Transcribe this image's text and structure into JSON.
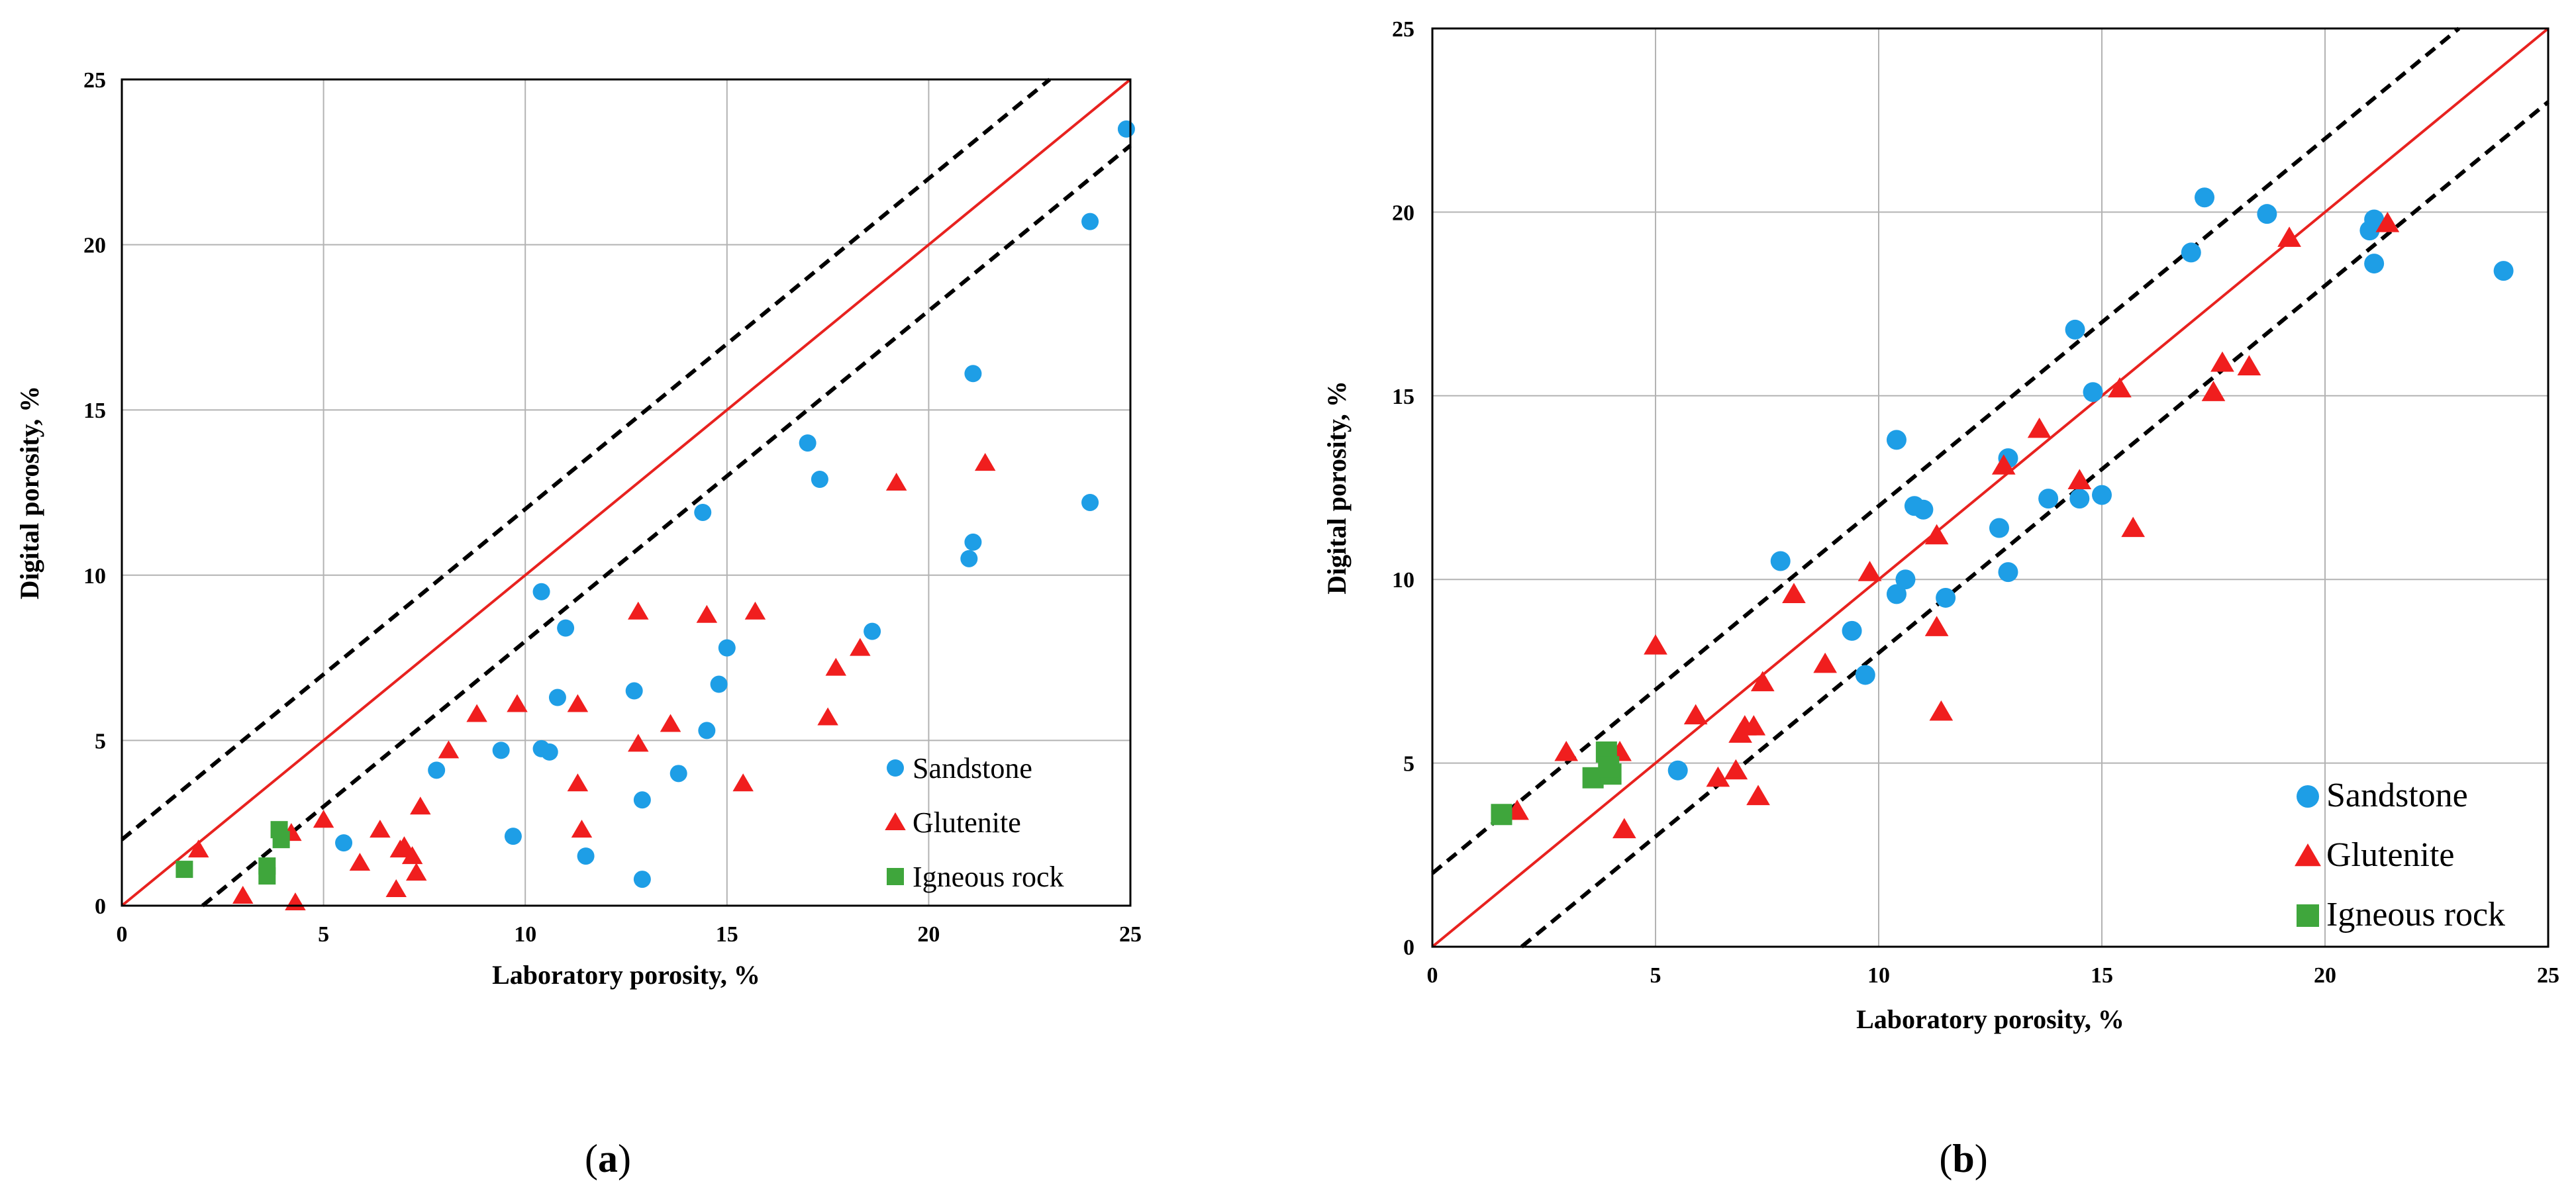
{
  "chart_data": [
    {
      "type": "scatter",
      "panel_label_prefix": "(",
      "panel_letter": "a",
      "panel_label_suffix": ")",
      "xlabel": "Laboratory porosity, %",
      "ylabel": "Digital porosity, %",
      "xlim": [
        0,
        25
      ],
      "ylim": [
        0,
        25
      ],
      "xticks": [
        "0",
        "5",
        "10",
        "15",
        "20",
        "25"
      ],
      "yticks": [
        "0",
        "5",
        "10",
        "15",
        "20",
        "25"
      ],
      "grid": true,
      "legend_position": "bottom-right",
      "reference_lines": {
        "identity": {
          "x": [
            0,
            25
          ],
          "y": [
            0,
            25
          ],
          "color": "#e8221f",
          "style": "solid"
        },
        "upper_bound": {
          "x": [
            0,
            23
          ],
          "y": [
            2,
            25
          ],
          "color": "#000000",
          "style": "dashed"
        },
        "lower_bound": {
          "x": [
            2,
            25
          ],
          "y": [
            0,
            23
          ],
          "color": "#000000",
          "style": "dashed"
        }
      },
      "series": [
        {
          "name": "Sandstone",
          "marker": "circle",
          "color": "#1e9ee6",
          "points": [
            [
              24.9,
              23.5
            ],
            [
              24.0,
              20.7
            ],
            [
              24.0,
              12.2
            ],
            [
              21.1,
              16.1
            ],
            [
              21.1,
              11.0
            ],
            [
              21.0,
              10.5
            ],
            [
              17.0,
              14.0
            ],
            [
              17.3,
              12.9
            ],
            [
              14.4,
              11.9
            ],
            [
              18.6,
              8.3
            ],
            [
              15.0,
              7.8
            ],
            [
              14.8,
              6.7
            ],
            [
              10.4,
              9.5
            ],
            [
              11.0,
              8.4
            ],
            [
              10.8,
              6.3
            ],
            [
              12.7,
              6.5
            ],
            [
              14.5,
              5.3
            ],
            [
              13.8,
              4.0
            ],
            [
              12.9,
              3.2
            ],
            [
              9.4,
              4.7
            ],
            [
              10.4,
              4.75
            ],
            [
              10.6,
              4.65
            ],
            [
              7.8,
              4.1
            ],
            [
              5.5,
              1.9
            ],
            [
              9.7,
              2.1
            ],
            [
              11.5,
              1.5
            ],
            [
              12.9,
              0.8
            ]
          ]
        },
        {
          "name": "Glutenite",
          "marker": "triangle",
          "color": "#f01e1e",
          "points": [
            [
              1.9,
              1.7
            ],
            [
              3.0,
              0.3
            ],
            [
              4.2,
              2.2
            ],
            [
              4.3,
              0.1
            ],
            [
              5.0,
              2.6
            ],
            [
              5.9,
              1.3
            ],
            [
              6.4,
              2.3
            ],
            [
              6.9,
              1.7
            ],
            [
              7.0,
              1.8
            ],
            [
              7.2,
              1.5
            ],
            [
              6.8,
              0.5
            ],
            [
              7.3,
              1.0
            ],
            [
              7.4,
              3.0
            ],
            [
              8.1,
              4.7
            ],
            [
              8.8,
              5.8
            ],
            [
              9.8,
              6.1
            ],
            [
              11.3,
              6.1
            ],
            [
              11.3,
              3.7
            ],
            [
              11.4,
              2.3
            ],
            [
              12.8,
              8.9
            ],
            [
              12.8,
              4.9
            ],
            [
              13.6,
              5.5
            ],
            [
              14.5,
              8.8
            ],
            [
              15.7,
              8.9
            ],
            [
              15.4,
              3.7
            ],
            [
              17.5,
              5.7
            ],
            [
              17.7,
              7.2
            ],
            [
              18.3,
              7.8
            ],
            [
              19.2,
              12.8
            ],
            [
              21.4,
              13.4
            ]
          ]
        },
        {
          "name": "Igneous rock",
          "marker": "square",
          "color": "#3fa63c",
          "points": [
            [
              1.55,
              1.1
            ],
            [
              3.9,
              2.3
            ],
            [
              3.95,
              2.0
            ],
            [
              3.6,
              1.2
            ],
            [
              3.6,
              0.9
            ]
          ]
        }
      ]
    },
    {
      "type": "scatter",
      "panel_label_prefix": "(",
      "panel_letter": "b",
      "panel_label_suffix": ")",
      "xlabel": "Laboratory porosity, %",
      "ylabel": "Digital porosity, %",
      "xlim": [
        0,
        25
      ],
      "ylim": [
        0,
        25
      ],
      "xticks": [
        "0",
        "5",
        "10",
        "15",
        "20",
        "25"
      ],
      "yticks": [
        "0",
        "5",
        "10",
        "15",
        "20",
        "25"
      ],
      "grid": true,
      "legend_position": "bottom-right",
      "reference_lines": {
        "identity": {
          "x": [
            0,
            25
          ],
          "y": [
            0,
            25
          ],
          "color": "#e8221f",
          "style": "solid"
        },
        "upper_bound": {
          "x": [
            0,
            23
          ],
          "y": [
            2,
            25
          ],
          "color": "#000000",
          "style": "dashed"
        },
        "lower_bound": {
          "x": [
            2,
            25
          ],
          "y": [
            0,
            23
          ],
          "color": "#000000",
          "style": "dashed"
        }
      },
      "series": [
        {
          "name": "Sandstone",
          "marker": "circle",
          "color": "#1e9ee6",
          "points": [
            [
              5.5,
              4.8
            ],
            [
              7.8,
              10.5
            ],
            [
              9.4,
              8.6
            ],
            [
              9.7,
              7.4
            ],
            [
              10.4,
              9.6
            ],
            [
              10.6,
              10.0
            ],
            [
              10.4,
              13.8
            ],
            [
              10.8,
              12.0
            ],
            [
              11.0,
              11.9
            ],
            [
              11.5,
              9.5
            ],
            [
              12.7,
              11.4
            ],
            [
              12.9,
              13.3
            ],
            [
              12.9,
              10.2
            ],
            [
              13.8,
              12.2
            ],
            [
              14.4,
              16.8
            ],
            [
              14.5,
              12.2
            ],
            [
              14.8,
              15.1
            ],
            [
              15.0,
              12.3
            ],
            [
              17.0,
              18.9
            ],
            [
              17.3,
              20.4
            ],
            [
              18.7,
              19.95
            ],
            [
              21.0,
              19.5
            ],
            [
              21.1,
              19.8
            ],
            [
              21.1,
              18.6
            ],
            [
              24.0,
              18.4
            ]
          ]
        },
        {
          "name": "Glutenite",
          "marker": "triangle",
          "color": "#f01e1e",
          "points": [
            [
              1.9,
              3.7
            ],
            [
              3.0,
              5.3
            ],
            [
              4.2,
              5.3
            ],
            [
              4.3,
              3.2
            ],
            [
              5.0,
              8.2
            ],
            [
              5.9,
              6.3
            ],
            [
              6.4,
              4.6
            ],
            [
              6.8,
              4.8
            ],
            [
              6.9,
              5.8
            ],
            [
              7.0,
              6.0
            ],
            [
              7.2,
              6.0
            ],
            [
              7.4,
              7.2
            ],
            [
              7.3,
              4.1
            ],
            [
              8.1,
              9.6
            ],
            [
              8.8,
              7.7
            ],
            [
              9.8,
              10.2
            ],
            [
              11.3,
              11.2
            ],
            [
              11.3,
              8.7
            ],
            [
              11.4,
              6.4
            ],
            [
              12.8,
              13.1
            ],
            [
              13.6,
              14.1
            ],
            [
              14.5,
              12.7
            ],
            [
              15.4,
              15.2
            ],
            [
              15.7,
              11.4
            ],
            [
              17.5,
              15.1
            ],
            [
              17.7,
              15.9
            ],
            [
              18.3,
              15.8
            ],
            [
              19.2,
              19.3
            ],
            [
              21.4,
              19.7
            ]
          ]
        },
        {
          "name": "Igneous rock",
          "marker": "square",
          "color": "#3fa63c",
          "points": [
            [
              1.55,
              3.6
            ],
            [
              3.6,
              4.6
            ],
            [
              3.9,
              5.3
            ],
            [
              4.0,
              4.7
            ],
            [
              3.95,
              4.9
            ]
          ]
        }
      ]
    }
  ]
}
